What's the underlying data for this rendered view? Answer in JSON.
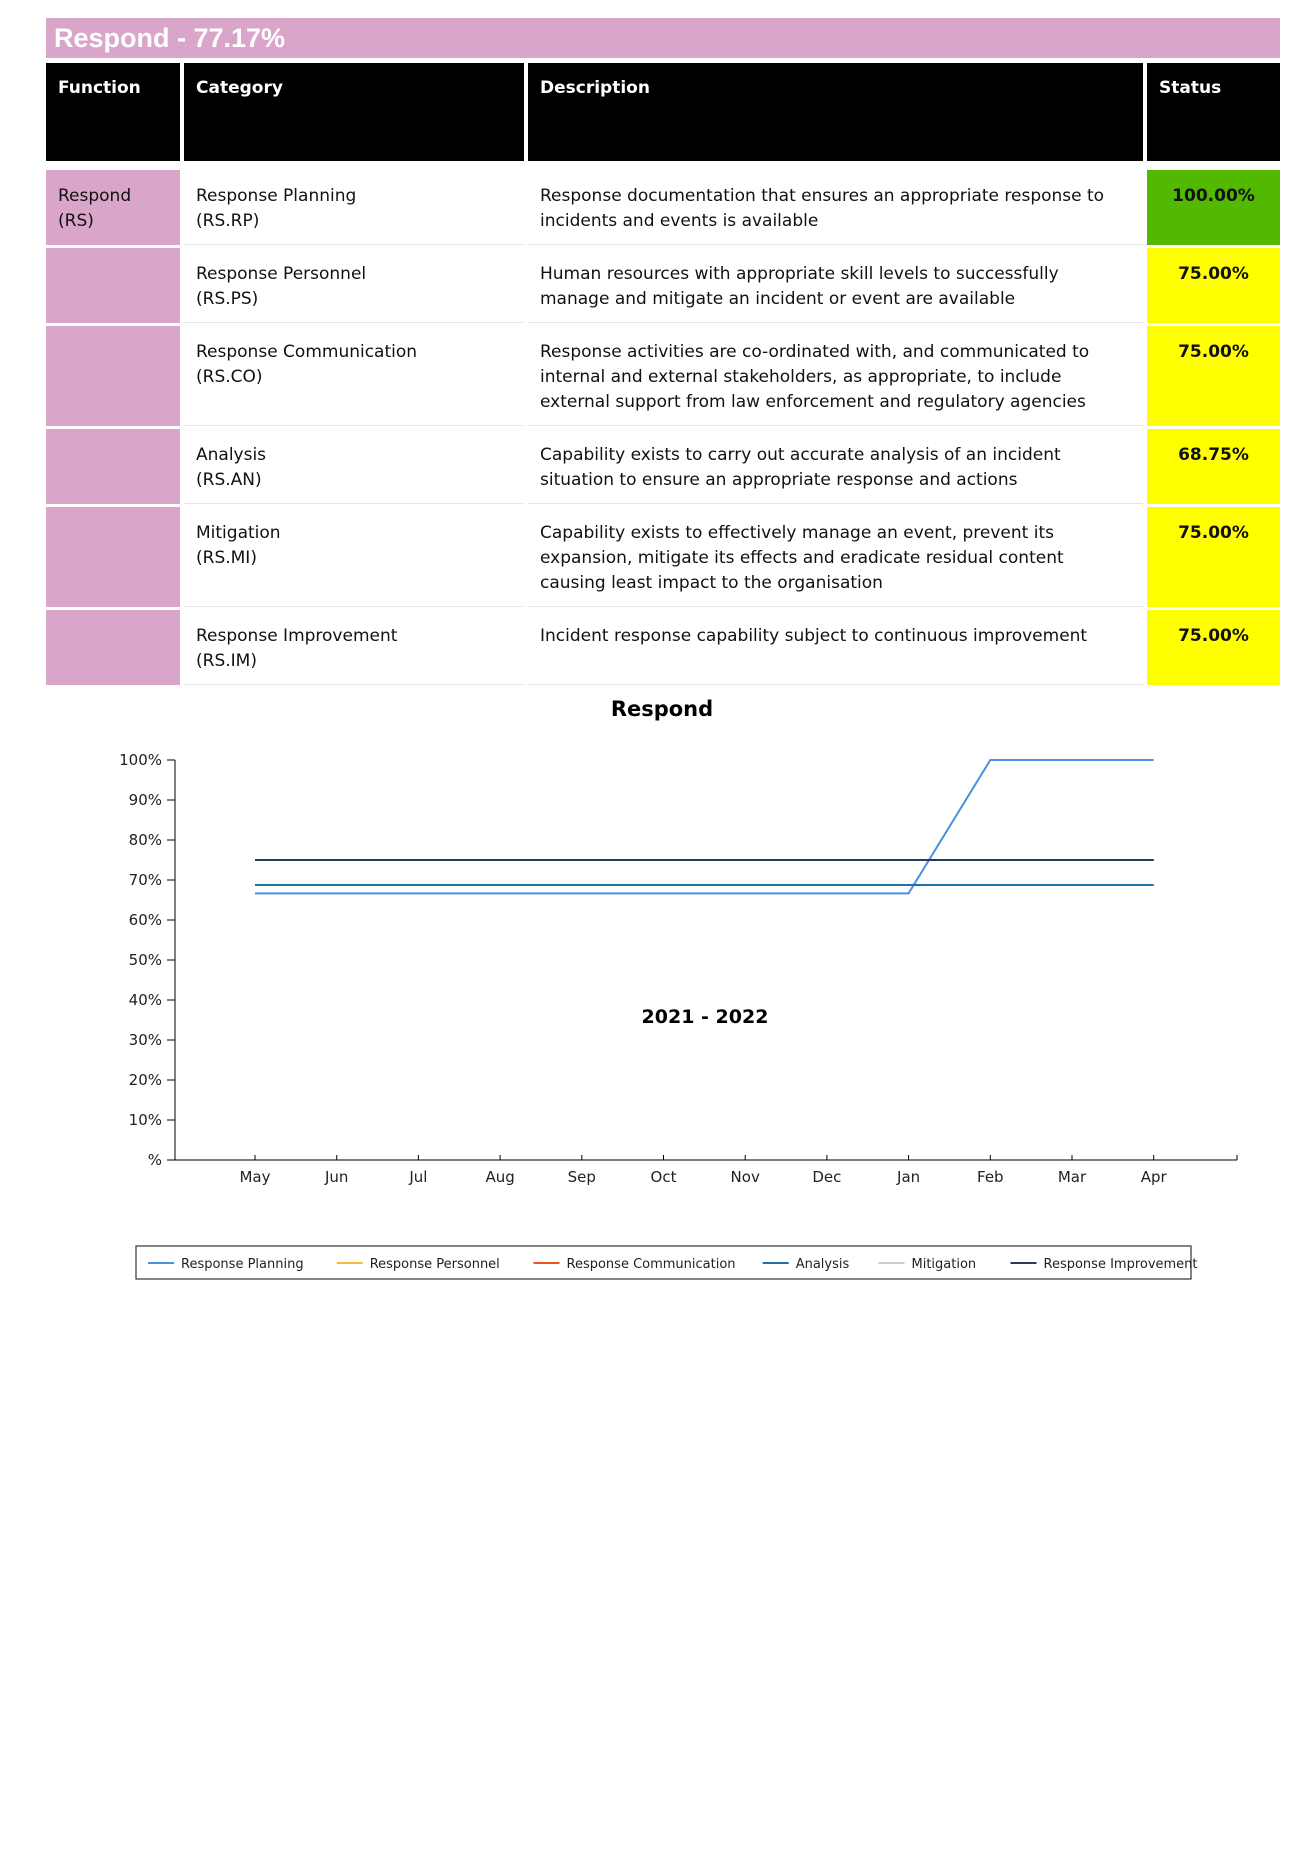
{
  "section": {
    "title": "Respond - 77.17%"
  },
  "table": {
    "headers": [
      "Function",
      "Category",
      "Description",
      "Status"
    ],
    "rows": [
      {
        "function": "Respond\n(RS)",
        "category": "Response Planning\n(RS.RP)",
        "description": "Response documentation that ensures an appropriate response to incidents and events is available",
        "status": "100.00%",
        "status_color": "#52b800"
      },
      {
        "function": "",
        "category": "Response Personnel\n(RS.PS)",
        "description": "Human resources with appropriate skill levels to successfully manage and mitigate an incident or event are available",
        "status": "75.00%",
        "status_color": "#ffff00"
      },
      {
        "function": "",
        "category": "Response Communication\n(RS.CO)",
        "description": "Response activities are co-ordinated with, and communicated to internal and external stakeholders, as appropriate, to include external support from law enforcement and regulatory agencies",
        "status": "75.00%",
        "status_color": "#ffff00"
      },
      {
        "function": "",
        "category": "Analysis\n(RS.AN)",
        "description": "Capability exists to carry out accurate analysis of an incident situation to ensure an appropriate response and actions",
        "status": "68.75%",
        "status_color": "#ffff00"
      },
      {
        "function": "",
        "category": "Mitigation\n(RS.MI)",
        "description": "Capability exists to effectively manage an event, prevent its expansion, mitigate its effects and eradicate residual content causing least impact to the organisation",
        "status": "75.00%",
        "status_color": "#ffff00"
      },
      {
        "function": "",
        "category": "Response Improvement\n(RS.IM)",
        "description": "Incident response capability subject to continuous improvement",
        "status": "75.00%",
        "status_color": "#ffff00"
      }
    ]
  },
  "chart_data": {
    "type": "line",
    "title": "Respond",
    "xlabel": "2021 - 2022",
    "ylabel": "",
    "ylim": [
      0,
      100
    ],
    "yticks": [
      "%",
      "10%",
      "20%",
      "30%",
      "40%",
      "50%",
      "60%",
      "70%",
      "80%",
      "90%",
      "100%"
    ],
    "categories": [
      "May",
      "Jun",
      "Jul",
      "Aug",
      "Sep",
      "Oct",
      "Nov",
      "Dec",
      "Jan",
      "Feb",
      "Mar",
      "Apr"
    ],
    "legend_position": "bottom",
    "grid": false,
    "series": [
      {
        "name": "Response Planning",
        "color": "#4a90e2",
        "values": [
          66.67,
          66.67,
          66.67,
          66.67,
          66.67,
          66.67,
          66.67,
          66.67,
          66.67,
          100,
          100,
          100
        ]
      },
      {
        "name": "Response Personnel",
        "color": "#f5b942",
        "values": [
          75,
          75,
          75,
          75,
          75,
          75,
          75,
          75,
          75,
          75,
          75,
          75
        ]
      },
      {
        "name": "Response Communication",
        "color": "#e8541e",
        "values": [
          75,
          75,
          75,
          75,
          75,
          75,
          75,
          75,
          75,
          75,
          75,
          75
        ]
      },
      {
        "name": "Analysis",
        "color": "#1f6fa8",
        "values": [
          68.75,
          68.75,
          68.75,
          68.75,
          68.75,
          68.75,
          68.75,
          68.75,
          68.75,
          68.75,
          68.75,
          68.75
        ]
      },
      {
        "name": "Mitigation",
        "color": "#cccccc",
        "values": [
          75,
          75,
          75,
          75,
          75,
          75,
          75,
          75,
          75,
          75,
          75,
          75
        ]
      },
      {
        "name": "Response Improvement",
        "color": "#2b3a5c",
        "values": [
          75,
          75,
          75,
          75,
          75,
          75,
          75,
          75,
          75,
          75,
          75,
          75
        ]
      }
    ]
  }
}
